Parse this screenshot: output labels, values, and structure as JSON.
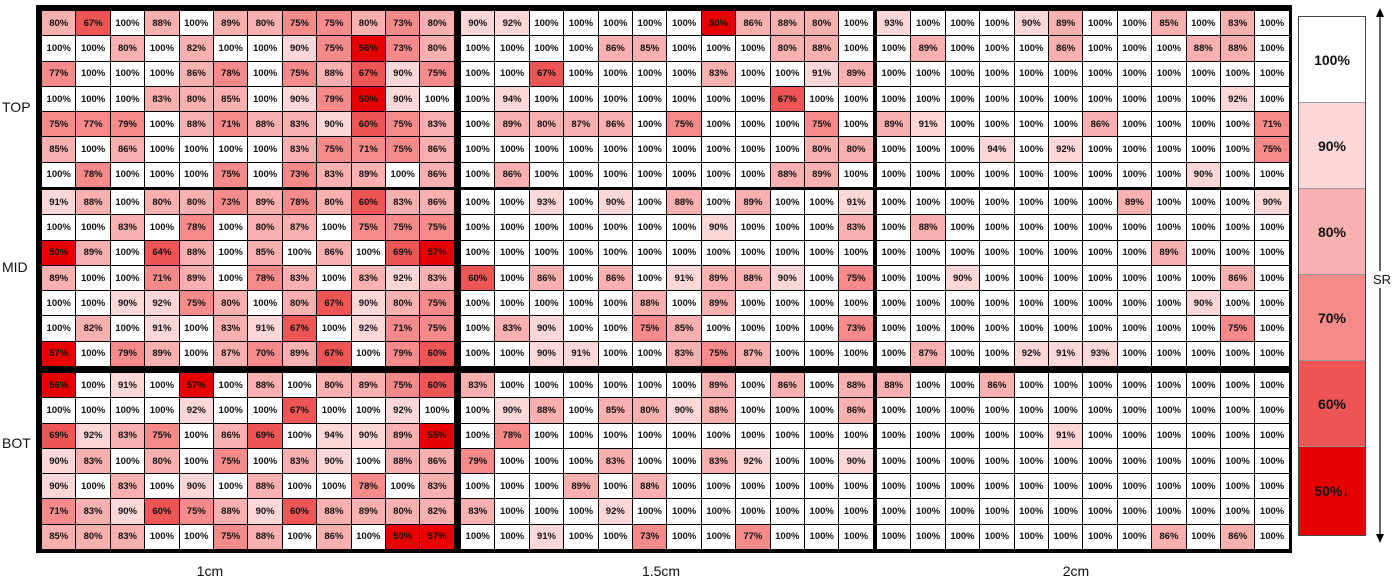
{
  "colors": {
    "scale": [
      {
        "min": 100,
        "color": "#ffffff"
      },
      {
        "min": 90,
        "color": "#fcd7d7"
      },
      {
        "min": 80,
        "color": "#f9b0b0"
      },
      {
        "min": 70,
        "color": "#f48a8a"
      },
      {
        "min": 60,
        "color": "#ee5555"
      },
      {
        "min": 0,
        "color": "#e60000"
      }
    ]
  },
  "chart_data": {
    "type": "heatmap",
    "row_groups": [
      "TOP",
      "MID",
      "BOT"
    ],
    "column_groups": [
      "1cm",
      "1.5cm",
      "2cm"
    ],
    "legend": {
      "title": "SR",
      "entries": [
        "100%",
        "90%",
        "80%",
        "70%",
        "60%",
        "50%↓"
      ]
    },
    "blocks": [
      [
        [
          [
            80,
            67,
            100,
            88,
            100,
            89,
            80,
            75,
            75,
            80,
            73,
            80
          ],
          [
            100,
            100,
            80,
            100,
            82,
            100,
            100,
            90,
            75,
            56,
            73,
            80
          ],
          [
            77,
            100,
            100,
            100,
            86,
            78,
            100,
            75,
            88,
            67,
            90,
            75
          ],
          [
            100,
            100,
            100,
            83,
            80,
            85,
            100,
            90,
            79,
            50,
            90,
            100
          ],
          [
            75,
            77,
            79,
            100,
            88,
            71,
            88,
            83,
            90,
            60,
            75,
            83
          ],
          [
            85,
            100,
            86,
            100,
            100,
            100,
            100,
            83,
            75,
            71,
            75,
            86
          ],
          [
            100,
            78,
            100,
            100,
            100,
            75,
            100,
            73,
            83,
            89,
            100,
            86
          ]
        ],
        [
          [
            90,
            92,
            100,
            100,
            100,
            100,
            100,
            50,
            86,
            88,
            80,
            100
          ],
          [
            100,
            100,
            100,
            100,
            86,
            85,
            100,
            100,
            100,
            80,
            88,
            100
          ],
          [
            100,
            100,
            67,
            100,
            100,
            100,
            100,
            83,
            100,
            100,
            91,
            89
          ],
          [
            100,
            94,
            100,
            100,
            100,
            100,
            100,
            100,
            100,
            67,
            100,
            100
          ],
          [
            100,
            89,
            80,
            87,
            86,
            100,
            75,
            100,
            100,
            100,
            75,
            100
          ],
          [
            100,
            100,
            100,
            100,
            100,
            100,
            100,
            100,
            100,
            100,
            80,
            80
          ],
          [
            100,
            86,
            100,
            100,
            100,
            100,
            100,
            100,
            100,
            88,
            89,
            100
          ]
        ],
        [
          [
            93,
            100,
            100,
            100,
            90,
            89,
            100,
            100,
            85,
            100,
            83,
            100
          ],
          [
            100,
            89,
            100,
            100,
            100,
            86,
            100,
            100,
            100,
            88,
            88,
            100
          ],
          [
            100,
            100,
            100,
            100,
            100,
            100,
            100,
            100,
            100,
            100,
            100,
            100
          ],
          [
            100,
            100,
            100,
            100,
            100,
            100,
            100,
            100,
            100,
            100,
            92,
            100
          ],
          [
            89,
            91,
            100,
            100,
            100,
            100,
            86,
            100,
            100,
            100,
            100,
            71
          ],
          [
            100,
            100,
            100,
            94,
            100,
            92,
            100,
            100,
            100,
            100,
            100,
            75
          ],
          [
            100,
            100,
            100,
            100,
            100,
            100,
            100,
            100,
            100,
            90,
            100,
            100
          ]
        ]
      ],
      [
        [
          [
            91,
            88,
            100,
            80,
            80,
            73,
            89,
            78,
            80,
            60,
            83,
            86
          ],
          [
            100,
            100,
            83,
            100,
            78,
            100,
            80,
            87,
            100,
            75,
            75,
            75
          ],
          [
            50,
            89,
            100,
            64,
            88,
            100,
            85,
            100,
            86,
            100,
            69,
            57
          ],
          [
            89,
            100,
            100,
            71,
            89,
            100,
            78,
            83,
            100,
            83,
            92,
            83
          ],
          [
            100,
            100,
            90,
            92,
            75,
            80,
            100,
            80,
            67,
            90,
            80,
            75
          ],
          [
            100,
            82,
            100,
            91,
            100,
            83,
            91,
            67,
            100,
            92,
            71,
            75
          ],
          [
            57,
            100,
            79,
            89,
            100,
            87,
            70,
            89,
            67,
            100,
            79,
            60
          ]
        ],
        [
          [
            100,
            100,
            93,
            100,
            90,
            100,
            88,
            100,
            89,
            100,
            100,
            91
          ],
          [
            100,
            100,
            100,
            100,
            100,
            100,
            100,
            90,
            100,
            100,
            100,
            83
          ],
          [
            100,
            100,
            100,
            100,
            100,
            100,
            100,
            100,
            100,
            100,
            100,
            100
          ],
          [
            60,
            100,
            86,
            100,
            86,
            100,
            91,
            89,
            88,
            90,
            100,
            75
          ],
          [
            100,
            100,
            100,
            100,
            100,
            88,
            100,
            89,
            100,
            100,
            100,
            100
          ],
          [
            100,
            83,
            90,
            100,
            100,
            75,
            85,
            100,
            100,
            100,
            100,
            73
          ],
          [
            100,
            100,
            90,
            91,
            100,
            100,
            83,
            75,
            87,
            100,
            100,
            100
          ]
        ],
        [
          [
            100,
            100,
            100,
            100,
            100,
            100,
            100,
            89,
            100,
            100,
            100,
            90
          ],
          [
            100,
            88,
            100,
            100,
            100,
            100,
            100,
            100,
            100,
            100,
            100,
            100
          ],
          [
            100,
            100,
            100,
            100,
            100,
            100,
            100,
            100,
            89,
            100,
            100,
            100
          ],
          [
            100,
            100,
            90,
            100,
            100,
            100,
            100,
            100,
            100,
            100,
            86,
            100
          ],
          [
            100,
            100,
            100,
            100,
            100,
            100,
            100,
            100,
            100,
            90,
            100,
            100
          ],
          [
            100,
            100,
            100,
            100,
            100,
            100,
            100,
            100,
            100,
            100,
            75,
            100
          ],
          [
            100,
            87,
            100,
            100,
            92,
            91,
            93,
            100,
            100,
            100,
            100,
            100
          ]
        ]
      ],
      [
        [
          [
            56,
            100,
            91,
            100,
            57,
            100,
            88,
            100,
            80,
            89,
            75,
            60
          ],
          [
            100,
            100,
            100,
            100,
            92,
            100,
            100,
            67,
            100,
            100,
            92,
            100
          ],
          [
            69,
            92,
            83,
            75,
            100,
            86,
            69,
            100,
            94,
            90,
            89,
            55
          ],
          [
            90,
            83,
            100,
            80,
            100,
            75,
            100,
            83,
            90,
            100,
            88,
            86
          ],
          [
            90,
            100,
            83,
            100,
            90,
            100,
            88,
            100,
            100,
            78,
            100,
            83
          ],
          [
            71,
            83,
            90,
            60,
            75,
            88,
            90,
            60,
            88,
            89,
            80,
            82
          ],
          [
            85,
            80,
            83,
            100,
            100,
            75,
            88,
            100,
            86,
            100,
            50,
            57
          ]
        ],
        [
          [
            83,
            100,
            100,
            100,
            100,
            100,
            100,
            89,
            100,
            86,
            100,
            88
          ],
          [
            100,
            90,
            88,
            100,
            85,
            80,
            90,
            88,
            100,
            100,
            100,
            86
          ],
          [
            100,
            78,
            100,
            100,
            100,
            100,
            100,
            100,
            100,
            100,
            100,
            100
          ],
          [
            79,
            100,
            100,
            100,
            83,
            100,
            100,
            83,
            92,
            100,
            100,
            90
          ],
          [
            100,
            100,
            100,
            89,
            100,
            88,
            100,
            100,
            100,
            100,
            100,
            100
          ],
          [
            83,
            100,
            100,
            100,
            92,
            100,
            100,
            100,
            100,
            100,
            100,
            100
          ],
          [
            100,
            100,
            91,
            100,
            100,
            73,
            100,
            100,
            77,
            100,
            100,
            100
          ]
        ],
        [
          [
            88,
            100,
            100,
            86,
            100,
            100,
            100,
            100,
            100,
            100,
            100,
            100
          ],
          [
            100,
            100,
            100,
            100,
            100,
            100,
            100,
            100,
            100,
            100,
            100,
            100
          ],
          [
            100,
            100,
            100,
            100,
            100,
            91,
            100,
            100,
            100,
            100,
            100,
            100
          ],
          [
            100,
            100,
            100,
            100,
            100,
            100,
            100,
            100,
            100,
            100,
            100,
            100
          ],
          [
            100,
            100,
            100,
            100,
            100,
            100,
            100,
            100,
            100,
            100,
            100,
            100
          ],
          [
            100,
            100,
            100,
            100,
            100,
            100,
            100,
            100,
            100,
            100,
            100,
            100
          ],
          [
            100,
            100,
            100,
            100,
            100,
            100,
            100,
            100,
            86,
            100,
            86,
            100
          ]
        ]
      ]
    ]
  }
}
